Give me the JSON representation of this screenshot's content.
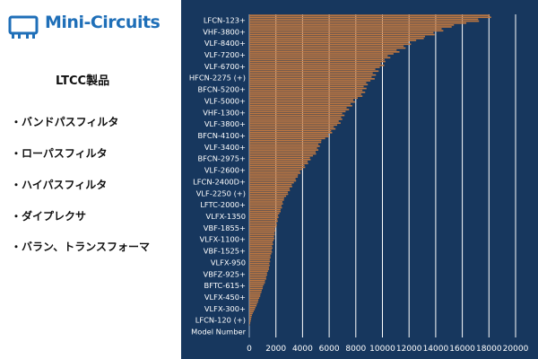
{
  "brand": {
    "name": "Mini-Circuits",
    "accent_color": "#1f6fb8",
    "icon": "chip-icon"
  },
  "section_title": "LTCC製品",
  "bullets": [
    "・バンドパスフィルタ",
    "・ローパスフィルタ",
    "・ハイパスフィルタ",
    "・ダイプレクサ",
    "・バラン、トランスフォーマ"
  ],
  "colors": {
    "chart_background": "#17375e",
    "bar": "#c07840",
    "grid": "#ffffff",
    "text": "#ffffff"
  },
  "chart_data": {
    "type": "bar",
    "orientation": "horizontal",
    "title": "",
    "xlabel": "",
    "ylabel": "",
    "xlim": [
      0,
      20000
    ],
    "x_ticks": [
      0,
      2000,
      4000,
      6000,
      8000,
      10000,
      12000,
      14000,
      16000,
      18000,
      20000
    ],
    "grid": "vertical",
    "category_labels": [
      "LFCN-123+",
      "VHF-3800+",
      "VLF-8400+",
      "VLF-7200+",
      "VLF-6700+",
      "HFCN-2275 (+)",
      "BFCN-5200+",
      "VLF-5000+",
      "VHF-1300+",
      "VLF-3800+",
      "BFCN-4100+",
      "VLF-3400+",
      "BFCN-2975+",
      "VLF-2600+",
      "LFCN-2400D+",
      "VLF-2250 (+)",
      "LFTC-2000+",
      "VLFX-1350",
      "VBF-1855+",
      "VLFX-1100+",
      "VBF-1525+",
      "VLFX-950",
      "VBFZ-925+",
      "BFTC-615+",
      "VLFX-450+",
      "VLFX-300+",
      "LFCN-120 (+)",
      "Model Number"
    ],
    "series": [
      {
        "values": [
          18500,
          15200,
          12800,
          11200,
          10100,
          9500,
          8900,
          8300,
          7400,
          6900,
          6300,
          5400,
          4900,
          4200,
          3600,
          3100,
          2600,
          2300,
          2050,
          1900,
          1750,
          1600,
          1450,
          1200,
          900,
          600,
          200,
          0
        ]
      }
    ]
  }
}
